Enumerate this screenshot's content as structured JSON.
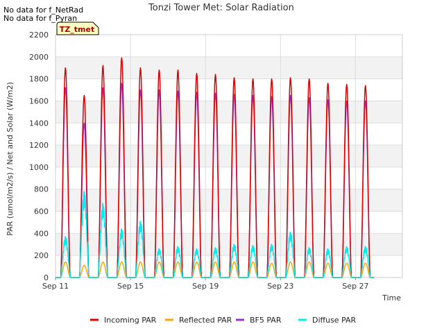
{
  "chart_data": {
    "type": "line",
    "title": "Tonzi Tower Met: Solar Radiation",
    "xlabel": "Time",
    "ylabel": "PAR (umol/m2/s) / Net and Solar (W/m2)",
    "ylim": [
      0,
      2200
    ],
    "yticks": [
      0,
      200,
      400,
      600,
      800,
      1000,
      1200,
      1400,
      1600,
      1800,
      2000,
      2200
    ],
    "xlim_days": [
      11,
      29.5
    ],
    "xticks": [
      {
        "day": 11,
        "label": "Sep 11"
      },
      {
        "day": 15,
        "label": "Sep 15"
      },
      {
        "day": 19,
        "label": "Sep 19"
      },
      {
        "day": 23,
        "label": "Sep 23"
      },
      {
        "day": 27,
        "label": "Sep 27"
      }
    ],
    "notes": [
      "No data for f_NetRad",
      "No data for f_Pyran"
    ],
    "tag": "TZ_tmet",
    "day_start": 11,
    "series": [
      {
        "name": "Incoming PAR",
        "color": "#dd0000",
        "daily_peaks": [
          1900,
          1650,
          1920,
          1990,
          1900,
          1880,
          1880,
          1850,
          1840,
          1810,
          1800,
          1800,
          1810,
          1800,
          1760,
          1750,
          1740
        ]
      },
      {
        "name": "Reflected PAR",
        "color": "#ffa500",
        "daily_peaks": [
          140,
          110,
          140,
          140,
          140,
          140,
          140,
          140,
          140,
          140,
          140,
          130,
          140,
          140,
          130,
          130,
          130
        ]
      },
      {
        "name": "BF5 PAR",
        "color": "#9a32cd",
        "daily_peaks": [
          1720,
          1400,
          1720,
          1760,
          1700,
          1700,
          1690,
          1680,
          1670,
          1660,
          1650,
          1640,
          1650,
          1630,
          1610,
          1600,
          1600
        ]
      },
      {
        "name": "Diffuse PAR",
        "color": "#00eeee",
        "daily_peaks": [
          370,
          780,
          670,
          440,
          510,
          260,
          280,
          260,
          270,
          300,
          290,
          300,
          410,
          270,
          260,
          280,
          280
        ]
      }
    ]
  }
}
